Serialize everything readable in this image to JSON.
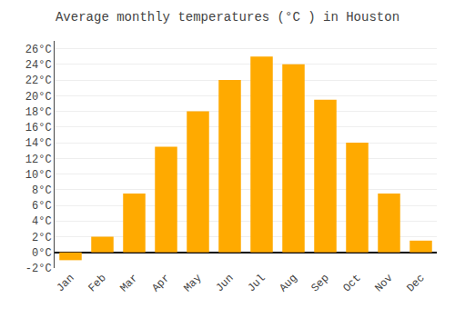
{
  "chart_data": {
    "type": "bar",
    "title": "Average monthly temperatures (°C ) in Houston",
    "categories": [
      "Jan",
      "Feb",
      "Mar",
      "Apr",
      "May",
      "Jun",
      "Jul",
      "Aug",
      "Sep",
      "Oct",
      "Nov",
      "Dec"
    ],
    "values": [
      -1,
      2,
      7.5,
      13.5,
      18,
      22,
      25,
      24,
      19.5,
      14,
      7.5,
      1.5
    ],
    "color": "#FFAA00",
    "ylim": [
      -2,
      27
    ],
    "yticks": [
      {
        "value": -2,
        "label": "-2°C"
      },
      {
        "value": 0,
        "label": "0°C"
      },
      {
        "value": 2,
        "label": "2°C"
      },
      {
        "value": 4,
        "label": "4°C"
      },
      {
        "value": 6,
        "label": "6°C"
      },
      {
        "value": 8,
        "label": "8°C"
      },
      {
        "value": 10,
        "label": "10°C"
      },
      {
        "value": 12,
        "label": "12°C"
      },
      {
        "value": 14,
        "label": "14°C"
      },
      {
        "value": 16,
        "label": "16°C"
      },
      {
        "value": 18,
        "label": "18°C"
      },
      {
        "value": 20,
        "label": "20°C"
      },
      {
        "value": 22,
        "label": "22°C"
      },
      {
        "value": 24,
        "label": "24°C"
      },
      {
        "value": 26,
        "label": "26°C"
      }
    ],
    "grid": true
  }
}
